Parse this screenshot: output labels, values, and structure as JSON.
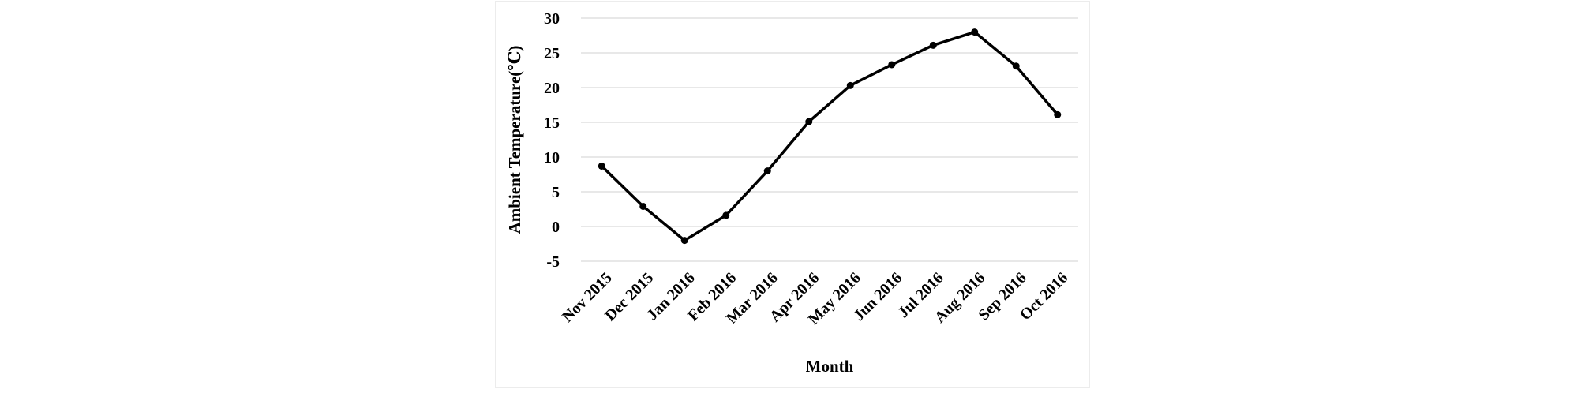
{
  "chart_data": {
    "type": "line",
    "categories": [
      "Nov 2015",
      "Dec 2015",
      "Jan 2016",
      "Feb 2016",
      "Mar 2016",
      "Apr 2016",
      "May 2016",
      "Jun 2016",
      "Jul 2016",
      "Aug 2016",
      "Sep 2016",
      "Oct 2016"
    ],
    "values": [
      8.7,
      2.9,
      -2.0,
      1.6,
      8.0,
      15.1,
      20.3,
      23.3,
      26.1,
      28.0,
      23.1,
      16.1
    ],
    "title": "",
    "xlabel": "Month",
    "ylabel": "Ambient Temperature(℃)",
    "ylim": [
      -5,
      30
    ],
    "yticks": [
      30,
      25,
      20,
      15,
      10,
      5,
      0,
      -5
    ],
    "grid": "horizontal",
    "legend_position": "none",
    "line_color": "#000000",
    "marker": "circle",
    "marker_color": "#000000",
    "gridline_color": "#d9d9d9",
    "text_color": "#000000",
    "chart_border_color": "#bfbfbf",
    "background_color": "#ffffff"
  }
}
